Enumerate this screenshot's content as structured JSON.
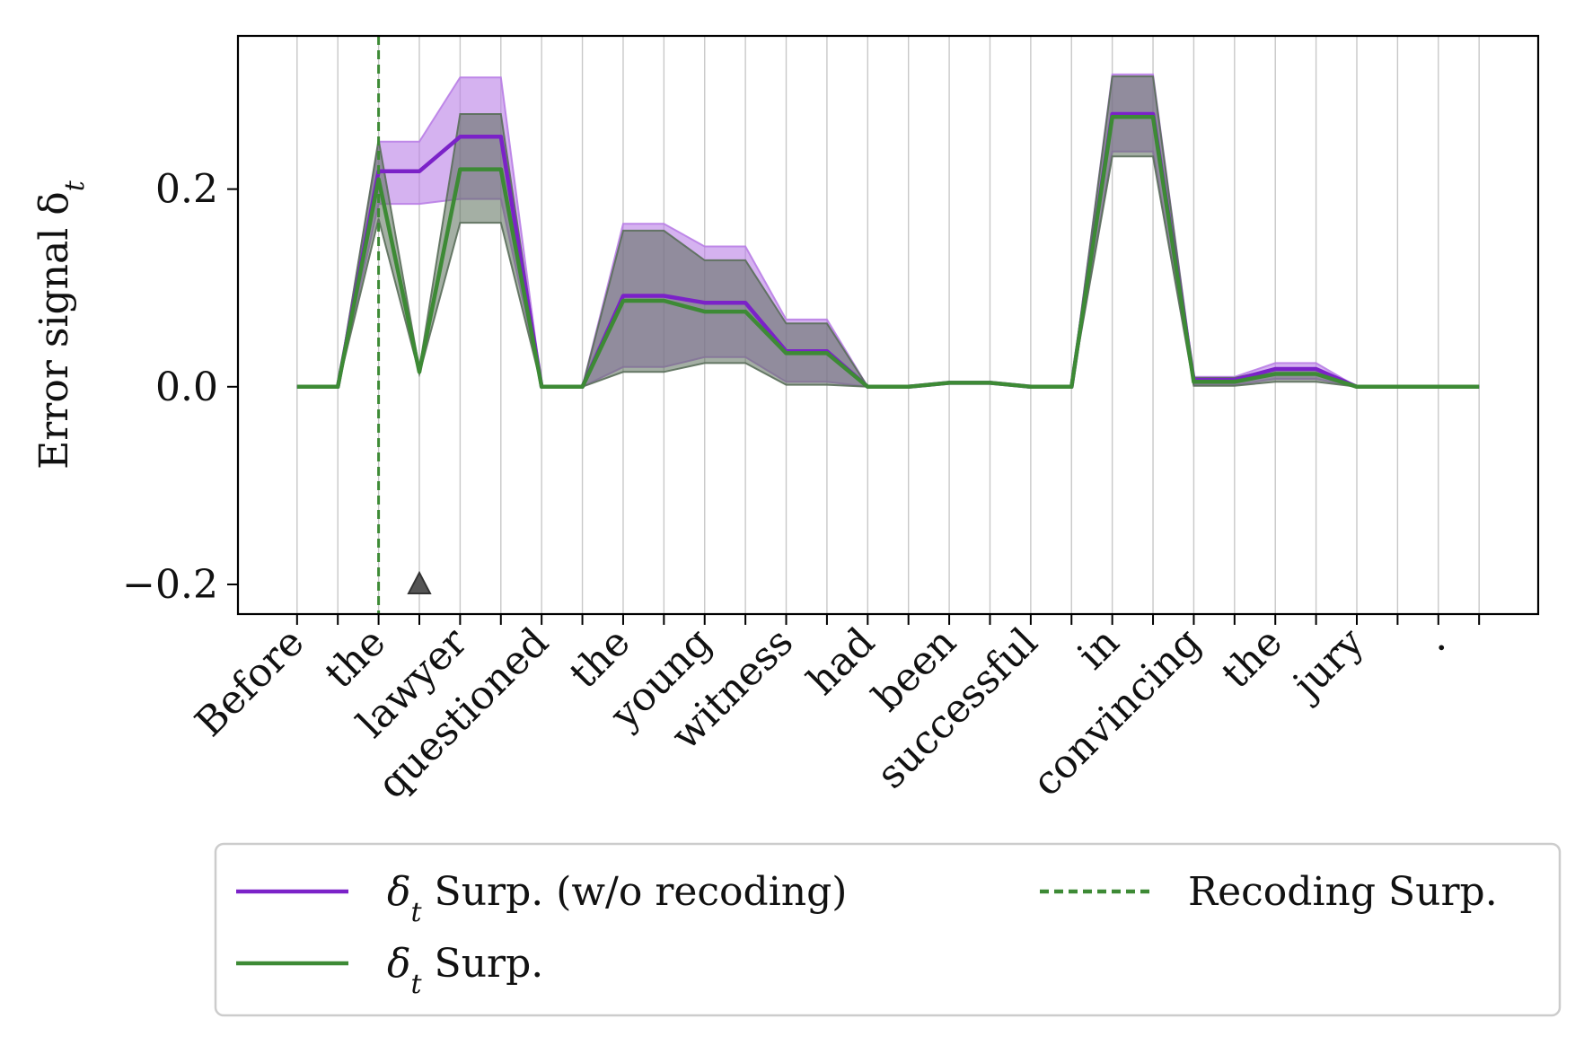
{
  "chart_data": {
    "type": "line",
    "ylabel": "Error signal δ",
    "ylabel_subscript": "t",
    "ylim": [
      -0.23,
      0.355
    ],
    "yticks": [
      0.2,
      0.0,
      -0.2
    ],
    "ytick_labels": [
      "0.2",
      "0.0",
      "−0.2"
    ],
    "grid": "vertical",
    "x": [
      0,
      1,
      2,
      3,
      4,
      5,
      6,
      7,
      8,
      9,
      10,
      11,
      12,
      13,
      14,
      15,
      16,
      17,
      18,
      19,
      20,
      21,
      22,
      23,
      24,
      25,
      26,
      27,
      28,
      29
    ],
    "xlim": [
      -1.45,
      30.45
    ],
    "xtick_labels": [
      {
        "x": 0,
        "label": "Before"
      },
      {
        "x": 2,
        "label": "the"
      },
      {
        "x": 4,
        "label": "lawyer"
      },
      {
        "x": 6,
        "label": "questioned"
      },
      {
        "x": 8,
        "label": "the"
      },
      {
        "x": 10,
        "label": "young"
      },
      {
        "x": 12,
        "label": "witness"
      },
      {
        "x": 14,
        "label": "had"
      },
      {
        "x": 16,
        "label": "been"
      },
      {
        "x": 18,
        "label": "successful"
      },
      {
        "x": 20,
        "label": "in"
      },
      {
        "x": 22,
        "label": "convincing"
      },
      {
        "x": 24,
        "label": "the"
      },
      {
        "x": 26,
        "label": "jury"
      },
      {
        "x": 28,
        "label": "."
      }
    ],
    "series": [
      {
        "name": "δt Surp. (w/o recoding)",
        "color": "#7b22c8",
        "band_color": "#b97ee6",
        "band_opacity": 0.6,
        "values": [
          0,
          0,
          0.218,
          0.218,
          0.253,
          0.253,
          0,
          0,
          0.092,
          0.092,
          0.085,
          0.085,
          0.036,
          0.036,
          0,
          0,
          0.004,
          0.004,
          0,
          0,
          0.276,
          0.276,
          0.007,
          0.007,
          0.018,
          0.018,
          0,
          0,
          0,
          0
        ],
        "lower": [
          0,
          0,
          0.185,
          0.185,
          0.19,
          0.19,
          0,
          0,
          0.02,
          0.02,
          0.03,
          0.03,
          0.005,
          0.005,
          0,
          0,
          0.004,
          0.004,
          0,
          0,
          0.238,
          0.238,
          0.002,
          0.002,
          0.008,
          0.008,
          0,
          0,
          0,
          0
        ],
        "upper": [
          0,
          0,
          0.248,
          0.248,
          0.313,
          0.313,
          0,
          0,
          0.165,
          0.165,
          0.142,
          0.142,
          0.068,
          0.068,
          0,
          0,
          0.004,
          0.004,
          0,
          0,
          0.316,
          0.316,
          0.01,
          0.01,
          0.024,
          0.024,
          0,
          0,
          0,
          0
        ]
      },
      {
        "name": "δt Surp.",
        "color": "#3d8a35",
        "band_color": "#5a6e5a",
        "band_opacity": 0.55,
        "values": [
          0,
          0,
          0.21,
          0.015,
          0.22,
          0.22,
          0,
          0,
          0.087,
          0.087,
          0.076,
          0.076,
          0.034,
          0.034,
          0,
          0,
          0.004,
          0.004,
          0,
          0,
          0.273,
          0.273,
          0.005,
          0.005,
          0.013,
          0.013,
          0,
          0,
          0,
          0
        ],
        "lower": [
          0,
          0,
          0.17,
          0.013,
          0.166,
          0.166,
          0,
          0,
          0.015,
          0.015,
          0.024,
          0.024,
          0.002,
          0.002,
          0,
          0,
          0.004,
          0.004,
          0,
          0,
          0.233,
          0.233,
          0.001,
          0.001,
          0.005,
          0.005,
          0,
          0,
          0,
          0
        ],
        "upper": [
          0,
          0,
          0.25,
          0.018,
          0.276,
          0.276,
          0,
          0,
          0.158,
          0.158,
          0.128,
          0.128,
          0.064,
          0.064,
          0,
          0,
          0.004,
          0.004,
          0,
          0,
          0.314,
          0.314,
          0.009,
          0.009,
          0.018,
          0.018,
          0,
          0,
          0,
          0
        ]
      }
    ],
    "annotations": {
      "recoding_line": {
        "x": 2,
        "label": "Recoding Surp.",
        "color": "#3d8a35",
        "style": "dashed"
      },
      "triangle_marker": {
        "x": 3,
        "y": -0.2,
        "color": "#555555"
      }
    },
    "legend": {
      "placement": "bottom",
      "entries": [
        {
          "prefix": "δ",
          "sub": "t",
          "text": " Surp. (w/o recoding)",
          "color": "#7b22c8",
          "style": "solid"
        },
        {
          "prefix": "δ",
          "sub": "t",
          "text": " Surp.",
          "color": "#3d8a35",
          "style": "solid"
        },
        {
          "prefix": "",
          "sub": "",
          "text": "Recoding Surp.",
          "color": "#3d8a35",
          "style": "dashed"
        }
      ]
    }
  }
}
